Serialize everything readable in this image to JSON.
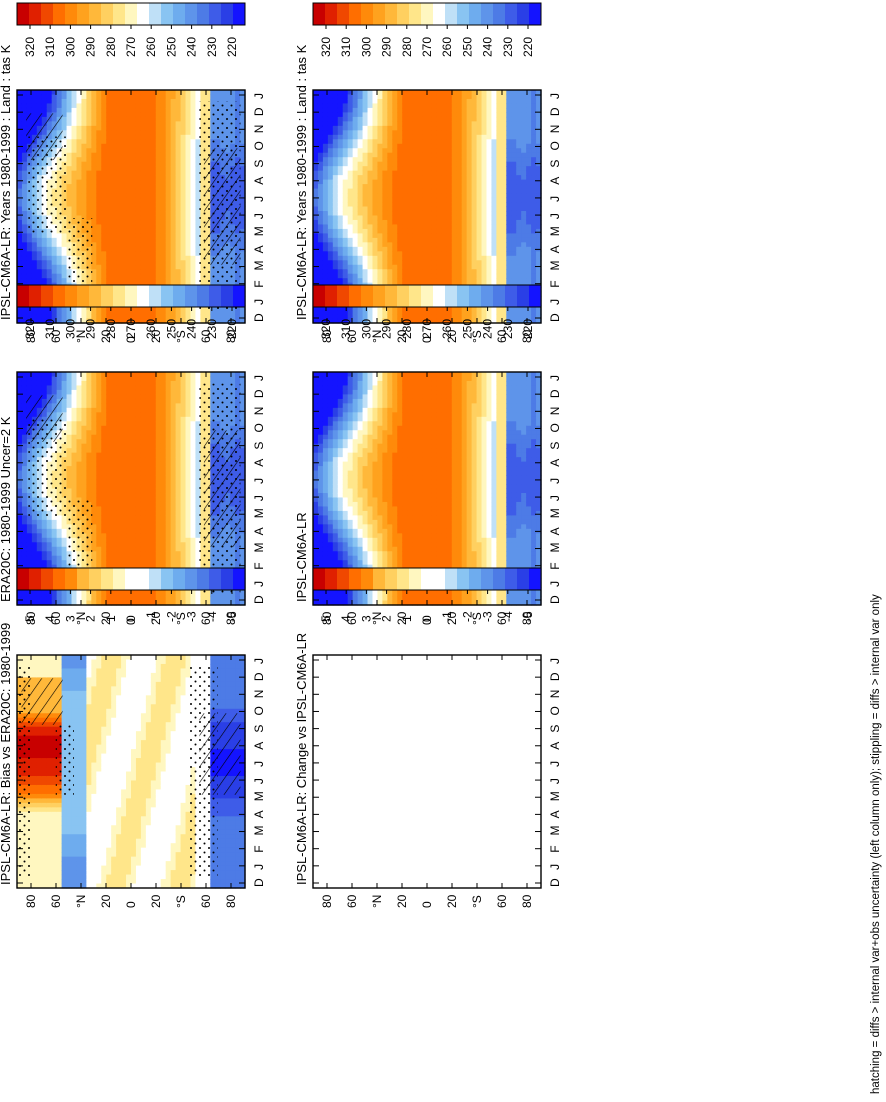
{
  "figure": {
    "footnote": "hatching = diffs > internal var+obs uncertainty (left column only); stippling = diffs > internal var only"
  },
  "lat_labels": [
    "80",
    "60",
    "°N",
    "20",
    "0",
    "20",
    "°S",
    "60",
    "80"
  ],
  "month_labels": [
    "D",
    "J",
    "F",
    "M",
    "A",
    "M",
    "J",
    "J",
    "A",
    "S",
    "O",
    "N",
    "D",
    "J"
  ],
  "colors": {
    "abs_scale": [
      "#1414ff",
      "#2a3fe6",
      "#3e5ce8",
      "#4d7be6",
      "#5e94ea",
      "#6eacee",
      "#89c4f2",
      "#bfe0f7",
      "#ffffff",
      "#fff7c0",
      "#ffe68a",
      "#ffd060",
      "#ffb83a",
      "#ffa21e",
      "#ff8a0a",
      "#ff6e00",
      "#f04800",
      "#e02000",
      "#c80000"
    ],
    "diff_scale": [
      "#1414ff",
      "#2a3fe6",
      "#3e5ce8",
      "#4d7be6",
      "#5e94ea",
      "#6eacee",
      "#89c4f2",
      "#bfe0f7",
      "#ffffff",
      "#ffffff",
      "#fff7c0",
      "#ffe68a",
      "#ffd060",
      "#ffb83a",
      "#ff8a0a",
      "#ff6e00",
      "#f04800",
      "#e02000",
      "#c80000"
    ]
  },
  "chart_data": [
    {
      "type": "heatmap",
      "title": "IPSL-CM6A-LR: Years 1980-1999 : Land : tas K",
      "x": [
        "D",
        "J",
        "F",
        "M",
        "A",
        "M",
        "J",
        "J",
        "A",
        "S",
        "O",
        "N",
        "D",
        "J"
      ],
      "y": [
        "80",
        "60",
        "°N",
        "20",
        "0",
        "20",
        "°S",
        "60",
        "80"
      ],
      "colorbar": {
        "ticks": [
          "320",
          "310",
          "300",
          "290",
          "280",
          "270",
          "260",
          "250",
          "240",
          "230",
          "220"
        ]
      },
      "field": "absolute",
      "hatching": true,
      "stippling": true
    },
    {
      "type": "heatmap",
      "title": "IPSL-CM6A-LR: Years 1980-1999 : Land : tas K",
      "x": [
        "D",
        "J",
        "F",
        "M",
        "A",
        "M",
        "J",
        "J",
        "A",
        "S",
        "O",
        "N",
        "D",
        "J"
      ],
      "y": [
        "80",
        "60",
        "°N",
        "20",
        "0",
        "20",
        "°S",
        "60",
        "80"
      ],
      "colorbar": {
        "ticks": [
          "320",
          "310",
          "300",
          "290",
          "280",
          "270",
          "260",
          "250",
          "240",
          "230",
          "220"
        ]
      },
      "field": "absolute",
      "hatching": false,
      "stippling": false
    },
    {
      "type": "heatmap",
      "title": "ERA20C: 1980-1999 Uncer=2 K",
      "x": [
        "D",
        "J",
        "F",
        "M",
        "A",
        "M",
        "J",
        "J",
        "A",
        "S",
        "O",
        "N",
        "D",
        "J"
      ],
      "y": [
        "80",
        "60",
        "°N",
        "20",
        "0",
        "20",
        "°S",
        "60",
        "80"
      ],
      "colorbar": {
        "ticks": [
          "320",
          "310",
          "300",
          "290",
          "280",
          "270",
          "260",
          "250",
          "240",
          "230",
          "220"
        ]
      },
      "field": "absolute",
      "hatching": true,
      "stippling": true
    },
    {
      "type": "heatmap",
      "title": "IPSL-CM6A-LR",
      "x": [
        "D",
        "J",
        "F",
        "M",
        "A",
        "M",
        "J",
        "J",
        "A",
        "S",
        "O",
        "N",
        "D",
        "J"
      ],
      "y": [
        "80",
        "60",
        "°N",
        "20",
        "0",
        "20",
        "°S",
        "60",
        "80"
      ],
      "colorbar": {
        "ticks": [
          "320",
          "310",
          "300",
          "290",
          "280",
          "270",
          "260",
          "250",
          "240",
          "230",
          "220"
        ]
      },
      "field": "absolute",
      "hatching": false,
      "stippling": false
    },
    {
      "type": "heatmap",
      "title": "IPSL-CM6A-LR: Bias vs ERA20C: 1980-1999",
      "x": [
        "D",
        "J",
        "F",
        "M",
        "A",
        "M",
        "J",
        "J",
        "A",
        "S",
        "O",
        "N",
        "D",
        "J"
      ],
      "y": [
        "80",
        "60",
        "°N",
        "20",
        "0",
        "20",
        "°S",
        "60",
        "80"
      ],
      "colorbar": {
        "ticks": [
          "5",
          "4",
          "3",
          "2",
          "1",
          "0",
          "-1",
          "-2",
          "-3",
          "-4",
          "-5"
        ]
      },
      "field": "bias",
      "hatching": true,
      "stippling": true
    },
    {
      "type": "heatmap",
      "title": "IPSL-CM6A-LR: Change vs IPSL-CM6A-LR",
      "x": [
        "D",
        "J",
        "F",
        "M",
        "A",
        "M",
        "J",
        "J",
        "A",
        "S",
        "O",
        "N",
        "D",
        "J"
      ],
      "y": [
        "80",
        "60",
        "°N",
        "20",
        "0",
        "20",
        "°S",
        "60",
        "80"
      ],
      "colorbar": {
        "ticks": [
          "5",
          "4",
          "3",
          "2",
          "1",
          "0",
          "-1",
          "-2",
          "-3",
          "-4",
          "-5"
        ]
      },
      "field": "empty",
      "hatching": false,
      "stippling": false
    }
  ]
}
